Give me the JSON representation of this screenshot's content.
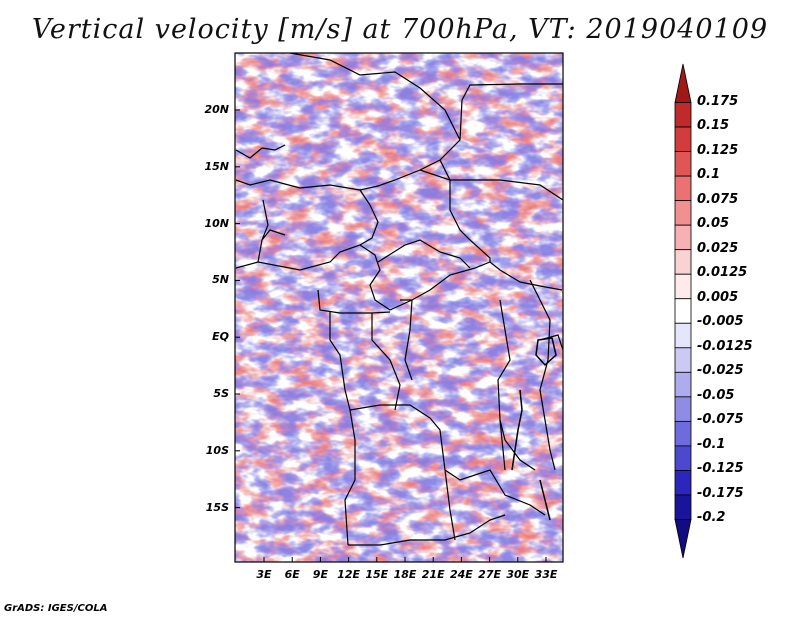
{
  "title": "Vertical velocity [m/s] at 700hPa, VT: 2019040109",
  "footer": "GrADS: IGES/COLA",
  "map": {
    "lat_labels": [
      "20N",
      "15N",
      "10N",
      "5N",
      "EQ",
      "5S",
      "10S",
      "15S"
    ],
    "lon_labels": [
      "3E",
      "6E",
      "9E",
      "12E",
      "15E",
      "18E",
      "21E",
      "24E",
      "27E",
      "30E",
      "33E"
    ],
    "field": "vertical-velocity-700hPa"
  },
  "colorbar": {
    "labels": [
      "0.175",
      "0.15",
      "0.125",
      "0.1",
      "0.075",
      "0.05",
      "0.025",
      "0.0125",
      "0.005",
      "-0.005",
      "-0.0125",
      "-0.025",
      "-0.05",
      "-0.075",
      "-0.1",
      "-0.125",
      "-0.175",
      "-0.2"
    ],
    "colors": [
      "#a01818",
      "#bf2a2a",
      "#d23c3c",
      "#e05555",
      "#ea7272",
      "#f09090",
      "#f6b2b2",
      "#fad2d2",
      "#fdeaea",
      "#ffffff",
      "#e6e6fb",
      "#cccaf5",
      "#aeacef",
      "#8f8ce6",
      "#6e6bdc",
      "#4c48cf",
      "#2c27bc",
      "#1a149c",
      "#120c80"
    ]
  }
}
